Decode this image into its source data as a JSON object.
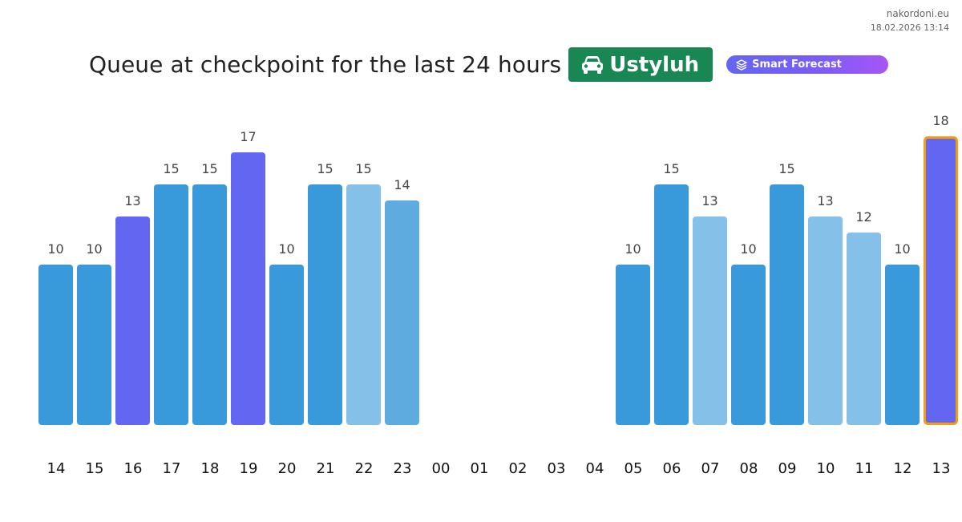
{
  "site": {
    "name": "nakordoni.eu",
    "timestamp": "18.02.2026 13:14"
  },
  "title": "Queue at checkpoint for the last 24 hours",
  "checkpoint": {
    "name": "Ustyluh",
    "icon": "car-icon",
    "color": "#198754"
  },
  "forecast_badge": {
    "label": "Smart Forecast",
    "icon": "layers-icon"
  },
  "chart_data": {
    "type": "bar",
    "title": "Queue at checkpoint for the last 24 hours",
    "categories": [
      "14",
      "15",
      "16",
      "17",
      "18",
      "19",
      "20",
      "21",
      "22",
      "23",
      "00",
      "01",
      "02",
      "03",
      "04",
      "05",
      "06",
      "07",
      "08",
      "09",
      "10",
      "11",
      "12",
      "13"
    ],
    "values": [
      10,
      10,
      13,
      15,
      15,
      17,
      10,
      15,
      15,
      14,
      null,
      null,
      null,
      null,
      null,
      10,
      15,
      13,
      10,
      15,
      13,
      12,
      10,
      18
    ],
    "colors": [
      "#3899db",
      "#3899db",
      "#6366f1",
      "#3899db",
      "#3899db",
      "#6366f1",
      "#3899db",
      "#3899db",
      "#85c0e8",
      "#5eacdf",
      null,
      null,
      null,
      null,
      null,
      "#3899db",
      "#3899db",
      "#85c0e8",
      "#3899db",
      "#3899db",
      "#85c0e8",
      "#85c0e8",
      "#3899db",
      "#6366f1"
    ],
    "highlight_index": 23,
    "highlight_color": "#f59e0b",
    "ylim": [
      0,
      18
    ],
    "grid": false,
    "xlabel": "",
    "ylabel": ""
  }
}
